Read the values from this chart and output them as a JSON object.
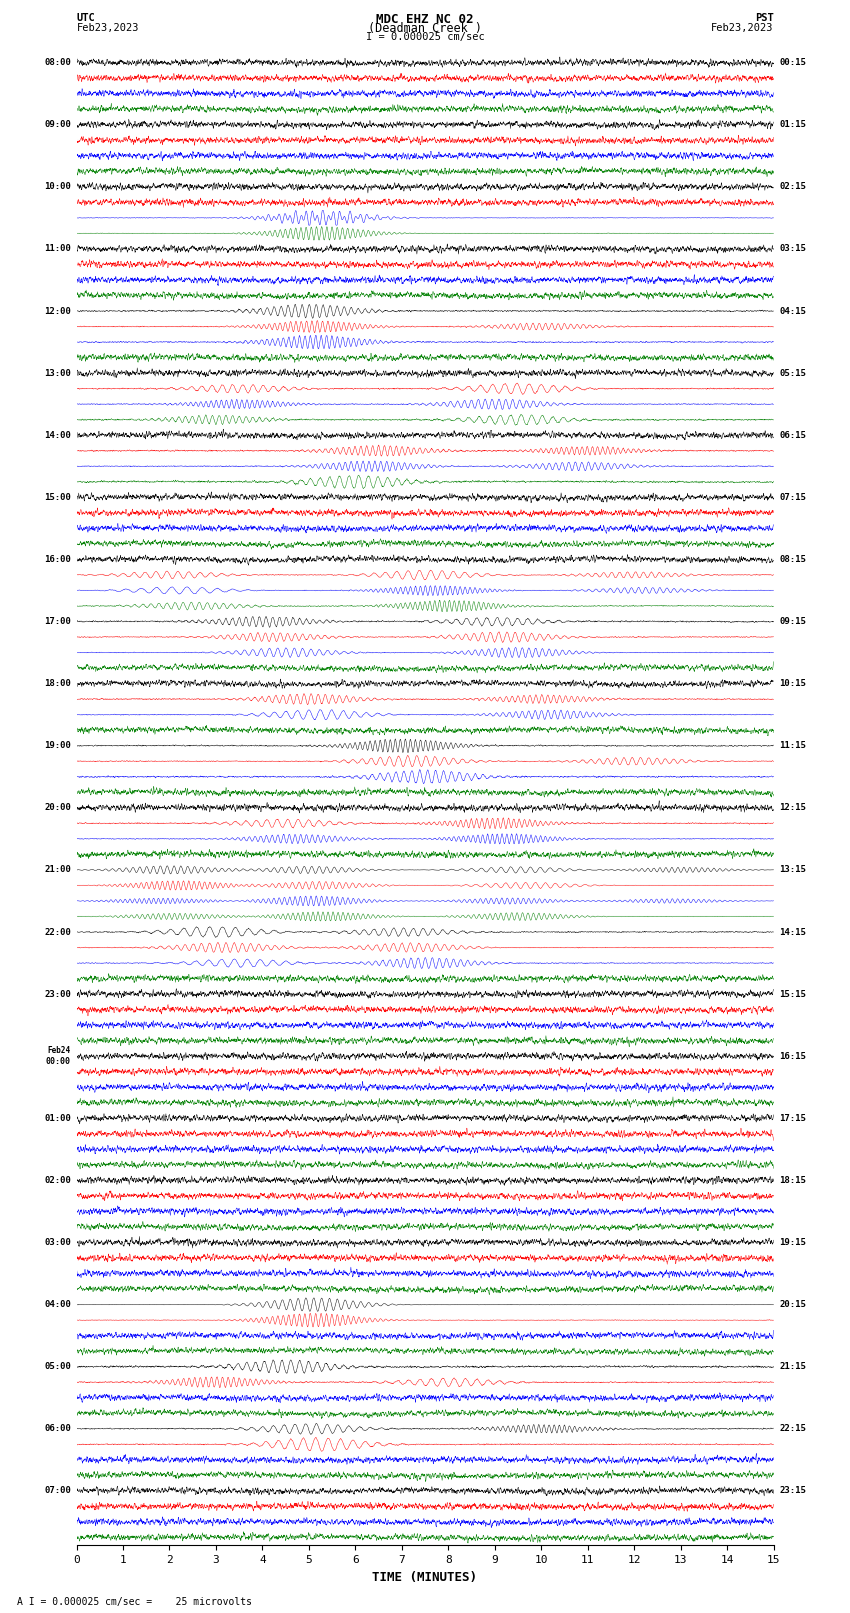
{
  "title_line1": "MDC EHZ NC 02",
  "title_line2": "(Deadman Creek )",
  "scale_label": "I = 0.000025 cm/sec",
  "bottom_label": "A I = 0.000025 cm/sec =    25 microvolts",
  "xlabel": "TIME (MINUTES)",
  "left_header_1": "UTC",
  "left_header_2": "Feb23,2023",
  "right_header_1": "PST",
  "right_header_2": "Feb23,2023",
  "utc_labels": [
    "08:00",
    "09:00",
    "10:00",
    "11:00",
    "12:00",
    "13:00",
    "14:00",
    "15:00",
    "16:00",
    "17:00",
    "18:00",
    "19:00",
    "20:00",
    "21:00",
    "22:00",
    "23:00",
    "Feb24\n00:00",
    "01:00",
    "02:00",
    "03:00",
    "04:00",
    "05:00",
    "06:00",
    "07:00"
  ],
  "pst_labels": [
    "00:15",
    "01:15",
    "02:15",
    "03:15",
    "04:15",
    "05:15",
    "06:15",
    "07:15",
    "08:15",
    "09:15",
    "10:15",
    "11:15",
    "12:15",
    "13:15",
    "14:15",
    "15:15",
    "16:15",
    "17:15",
    "18:15",
    "19:15",
    "20:15",
    "21:15",
    "22:15",
    "23:15"
  ],
  "n_hours": 24,
  "traces_per_hour": 4,
  "trace_colors": [
    "black",
    "red",
    "blue",
    "green"
  ],
  "base_noise": [
    0.09,
    0.13,
    0.13,
    0.07
  ],
  "xmin": 0,
  "xmax": 15,
  "xticks": [
    0,
    1,
    2,
    3,
    4,
    5,
    6,
    7,
    8,
    9,
    10,
    11,
    12,
    13,
    14,
    15
  ],
  "fig_width": 8.5,
  "fig_height": 16.13,
  "dpi": 100,
  "bg_color": "#ffffff"
}
